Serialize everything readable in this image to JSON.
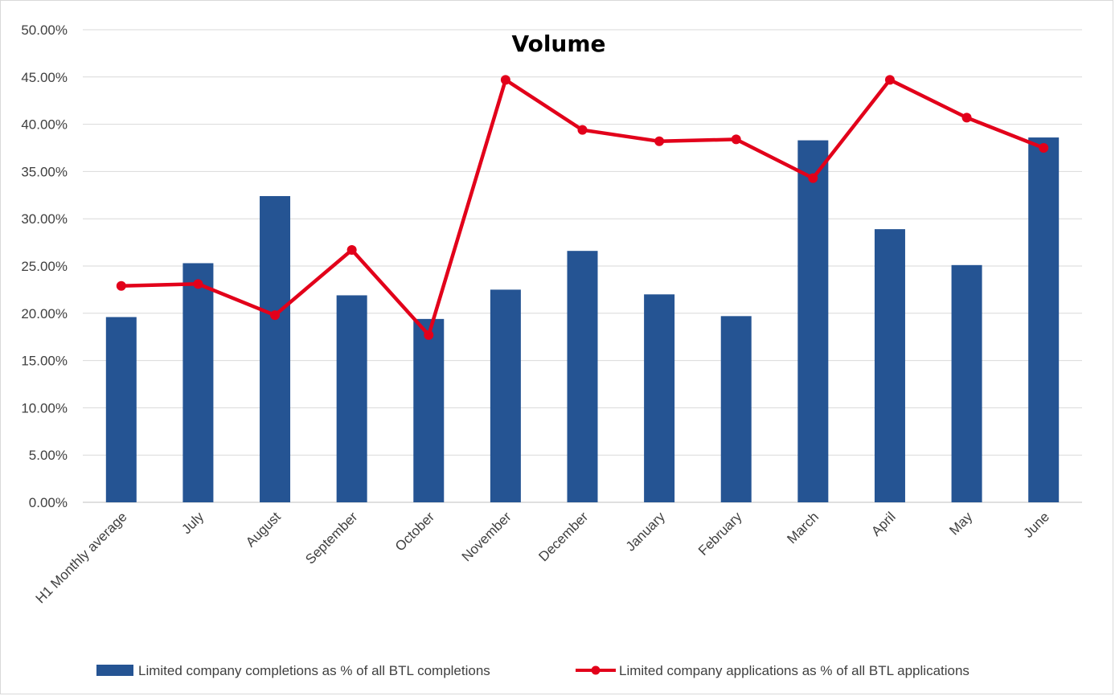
{
  "chart_data": {
    "type": "bar",
    "title": "Volume",
    "xlabel": "",
    "ylabel": "",
    "categories": [
      "H1 Monthly average",
      "July",
      "August",
      "September",
      "October",
      "November",
      "December",
      "January",
      "February",
      "March",
      "April",
      "May",
      "June"
    ],
    "series": [
      {
        "name": "Limited company completions as % of all BTL completions",
        "type": "bar",
        "color": "#255493",
        "values": [
          19.6,
          25.3,
          32.4,
          21.9,
          19.4,
          22.5,
          26.6,
          22.0,
          19.7,
          38.3,
          28.9,
          25.1,
          38.6
        ]
      },
      {
        "name": "Limited company applications as % of all BTL applications",
        "type": "line",
        "color": "#e2001a",
        "values": [
          22.9,
          23.1,
          19.8,
          26.7,
          17.7,
          44.7,
          39.4,
          38.2,
          38.4,
          34.3,
          44.7,
          40.7,
          37.5
        ]
      }
    ],
    "ylim": [
      0,
      50
    ],
    "yticks": [
      0,
      5,
      10,
      15,
      20,
      25,
      30,
      35,
      40,
      45,
      50
    ],
    "ytick_labels": [
      "0.00%",
      "5.00%",
      "10.00%",
      "15.00%",
      "20.00%",
      "25.00%",
      "30.00%",
      "35.00%",
      "40.00%",
      "45.00%",
      "50.00%"
    ],
    "grid": true,
    "legend_position": "bottom"
  }
}
